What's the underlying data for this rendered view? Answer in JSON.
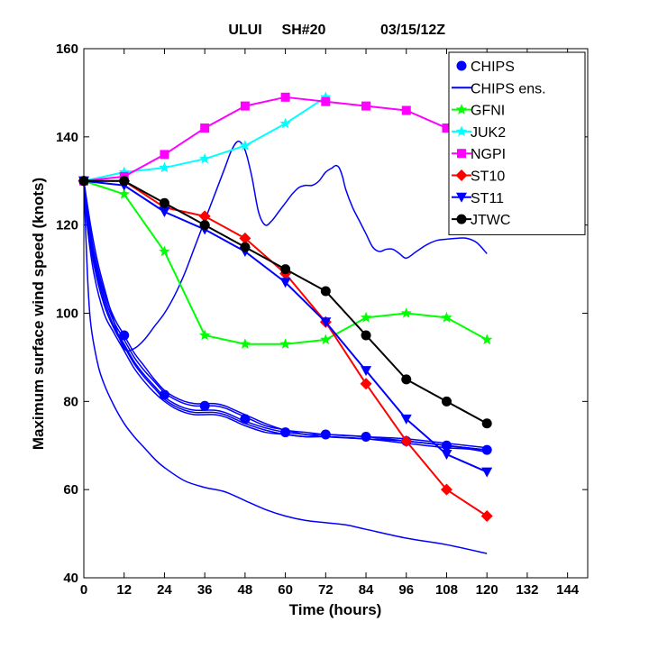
{
  "chart_data": {
    "type": "line",
    "title_parts": [
      "ULUI",
      "SH#20",
      "03/15/12Z"
    ],
    "xlabel": "Time (hours)",
    "ylabel": "Maximum surface wind speed (knots)",
    "xlim": [
      0,
      150
    ],
    "ylim": [
      40,
      160
    ],
    "xticks": [
      0,
      12,
      24,
      36,
      48,
      60,
      72,
      84,
      96,
      108,
      120,
      132,
      144
    ],
    "yticks": [
      40,
      60,
      80,
      100,
      120,
      140,
      160
    ],
    "xtick_labels": [
      "0",
      "12",
      "24",
      "36",
      "48",
      "60",
      "72",
      "84",
      "96",
      "108",
      "120",
      "132",
      "144"
    ],
    "ytick_labels": [
      "40",
      "60",
      "80",
      "100",
      "120",
      "140",
      "160"
    ],
    "grid": false,
    "legend_position": "top-right",
    "legend": [
      {
        "label": "CHIPS",
        "color": "#0000ff",
        "marker": "circle",
        "line": false
      },
      {
        "label": "CHIPS ens.",
        "color": "#0000ff",
        "marker": "none",
        "line": true
      },
      {
        "label": "GFNI",
        "color": "#00ff00",
        "marker": "star",
        "line": true
      },
      {
        "label": "JUK2",
        "color": "#00ffff",
        "marker": "star",
        "line": true
      },
      {
        "label": "NGPI",
        "color": "#ff00ff",
        "marker": "square",
        "line": true
      },
      {
        "label": "ST10",
        "color": "#ff0000",
        "marker": "diamond",
        "line": true
      },
      {
        "label": "ST11",
        "color": "#0000ff",
        "marker": "triangle-down",
        "line": true
      },
      {
        "label": "JTWC",
        "color": "#000000",
        "marker": "circle",
        "line": true
      }
    ],
    "series": [
      {
        "name": "CHIPS",
        "color": "#0000ff",
        "marker": "circle",
        "x": [
          0,
          12,
          24,
          36,
          48,
          60,
          72,
          84,
          96,
          108,
          120
        ],
        "y": [
          130,
          95,
          81.5,
          79,
          76,
          73,
          72.5,
          72,
          71,
          70,
          69
        ]
      },
      {
        "name": "GFNI",
        "color": "#00ff00",
        "marker": "star",
        "x": [
          0,
          12,
          24,
          36,
          48,
          60,
          72,
          84,
          96,
          108,
          120
        ],
        "y": [
          130,
          127,
          114,
          95,
          93,
          93,
          94,
          99,
          100,
          99,
          94
        ]
      },
      {
        "name": "JUK2",
        "color": "#00ffff",
        "marker": "star",
        "x": [
          0,
          12,
          24,
          36,
          48,
          60,
          72
        ],
        "y": [
          130,
          132,
          133,
          135,
          138,
          143,
          149
        ]
      },
      {
        "name": "NGPI",
        "color": "#ff00ff",
        "marker": "square",
        "x": [
          0,
          12,
          24,
          36,
          48,
          60,
          72,
          84,
          96,
          108
        ],
        "y": [
          130,
          131,
          136,
          142,
          147,
          149,
          148,
          147,
          146,
          142
        ]
      },
      {
        "name": "ST10",
        "color": "#ff0000",
        "marker": "diamond",
        "x": [
          0,
          12,
          24,
          36,
          48,
          60,
          72,
          84,
          96,
          108,
          120
        ],
        "y": [
          130,
          130,
          124,
          122,
          117,
          109,
          98,
          84,
          71,
          60,
          54
        ]
      },
      {
        "name": "ST11",
        "color": "#0000ff",
        "marker": "triangle-down",
        "x": [
          0,
          12,
          24,
          36,
          48,
          60,
          72,
          84,
          96,
          108,
          120
        ],
        "y": [
          130,
          129,
          123,
          119,
          114,
          107,
          98,
          87,
          76,
          68,
          64
        ]
      },
      {
        "name": "JTWC",
        "color": "#000000",
        "marker": "circle",
        "x": [
          0,
          12,
          24,
          36,
          48,
          60,
          72,
          84,
          96,
          108,
          120
        ],
        "y": [
          130,
          130,
          125,
          120,
          115,
          110,
          105,
          95,
          85,
          80,
          75
        ]
      }
    ],
    "ensemble": {
      "name": "CHIPS ens.",
      "color": "#0000ff",
      "members": [
        {
          "x": [
            0,
            1,
            3,
            6,
            9,
            12,
            15,
            18,
            21,
            24,
            27,
            30,
            33,
            36,
            39,
            42,
            45,
            48,
            54,
            60,
            66,
            72,
            84,
            96,
            108,
            120
          ],
          "y": [
            130,
            122,
            112,
            103,
            97,
            93,
            89,
            86,
            83.5,
            81,
            79.5,
            78.5,
            78,
            78,
            78,
            77.5,
            76.5,
            75.5,
            74,
            73,
            72.5,
            72,
            71.5,
            71,
            70,
            69
          ]
        },
        {
          "x": [
            0,
            1,
            3,
            6,
            9,
            12,
            15,
            18,
            21,
            24,
            27,
            30,
            33,
            36,
            39,
            42,
            45,
            48,
            54,
            60,
            66,
            72,
            84,
            96,
            108,
            120
          ],
          "y": [
            130,
            123,
            113,
            104,
            98,
            94,
            90,
            87,
            84.5,
            82,
            80.5,
            79.5,
            79,
            79,
            79,
            78.5,
            77.5,
            76.5,
            74.5,
            73.5,
            72.5,
            72.5,
            72,
            71,
            70,
            69
          ]
        },
        {
          "x": [
            0,
            1,
            3,
            6,
            9,
            12,
            15,
            18,
            21,
            24,
            27,
            30,
            33,
            36,
            39,
            42,
            45,
            48,
            54,
            60,
            66,
            72,
            84,
            96,
            108,
            120
          ],
          "y": [
            130,
            121,
            111,
            102,
            96.5,
            92.5,
            88.5,
            85.5,
            83,
            80.5,
            79,
            78,
            77.5,
            77.5,
            77.5,
            77,
            76,
            75,
            73.5,
            72.5,
            72,
            72,
            71.5,
            70.5,
            69.5,
            69
          ]
        },
        {
          "x": [
            0,
            1,
            3,
            6,
            9,
            12,
            15,
            18,
            21,
            24,
            27,
            30,
            33,
            36,
            39,
            42,
            45,
            48,
            54,
            60,
            66,
            72,
            84,
            96,
            108,
            120
          ],
          "y": [
            130,
            124,
            114,
            105,
            99,
            95,
            91,
            88,
            85,
            82.5,
            81,
            80,
            79.5,
            79.5,
            79.5,
            79,
            78,
            77,
            75,
            73.5,
            73,
            72.5,
            72,
            71.5,
            70.5,
            69.5
          ]
        },
        {
          "x": [
            0,
            1,
            3,
            6,
            9,
            12,
            15,
            18,
            21,
            24,
            27,
            30,
            33,
            36,
            39,
            42,
            45,
            48,
            54,
            60,
            66,
            72,
            84,
            96,
            108,
            120
          ],
          "y": [
            130,
            120,
            109,
            100,
            95.5,
            91.5,
            87.5,
            84.5,
            82,
            80,
            78.5,
            77.5,
            77,
            77,
            77,
            76.5,
            75.5,
            74.5,
            73,
            72.5,
            72,
            72,
            71.5,
            71,
            70,
            68.5
          ]
        },
        {
          "x": [
            0,
            1,
            2,
            4,
            6,
            9,
            12,
            15,
            18,
            21,
            24,
            30,
            36,
            42,
            48,
            54,
            60,
            66,
            72,
            78,
            84,
            96,
            108,
            120
          ],
          "y": [
            130,
            110,
            98,
            89,
            84,
            79,
            75,
            72,
            69.5,
            67,
            65,
            62,
            60.5,
            59.5,
            57.5,
            55.5,
            54,
            53,
            52.5,
            52,
            51,
            49,
            47.5,
            45.5
          ]
        },
        {
          "x": [
            0,
            2,
            4,
            6,
            9,
            12,
            15,
            18,
            21,
            24,
            27,
            30,
            33,
            36,
            39,
            42,
            44,
            46,
            48,
            50,
            52,
            54,
            56,
            58,
            60,
            62,
            64,
            66,
            68,
            70,
            72,
            74,
            75,
            76,
            77,
            78,
            80,
            82,
            84,
            86,
            88,
            90,
            92,
            94,
            96,
            99,
            102,
            105,
            108,
            111,
            114,
            117,
            120
          ],
          "y": [
            130,
            120,
            112,
            106,
            98,
            92,
            92,
            94,
            97,
            100,
            104,
            109,
            115,
            121,
            127,
            133,
            137,
            139,
            137,
            131,
            123,
            120,
            121,
            123,
            125,
            127,
            128.5,
            129,
            129,
            130,
            132,
            133,
            133.5,
            133,
            131,
            128,
            124,
            121,
            118,
            115,
            114,
            114.5,
            114.5,
            113.5,
            112.5,
            114,
            115.5,
            116.5,
            116.8,
            117,
            117,
            116,
            113.5
          ]
        }
      ]
    }
  }
}
